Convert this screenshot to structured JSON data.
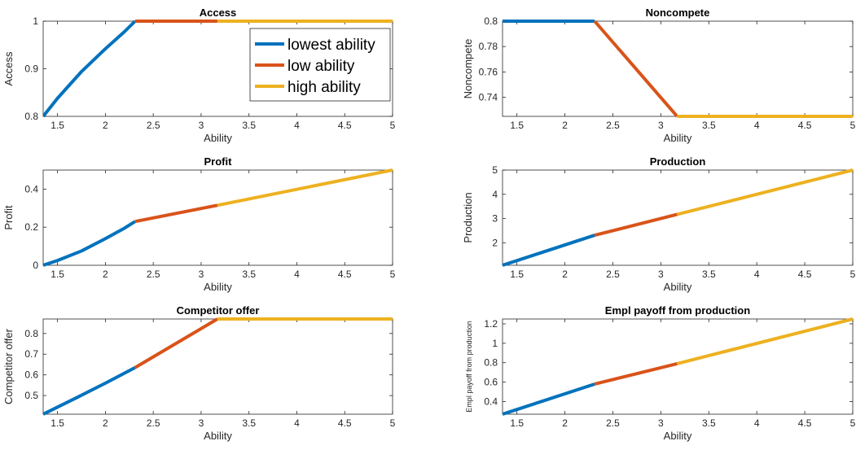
{
  "colors": {
    "lowest": "#0072BD",
    "low": "#D95319",
    "high": "#EDB120",
    "axis": "#262626",
    "background": "#ffffff"
  },
  "chart_data": [
    {
      "id": "access",
      "type": "line",
      "title": "Access",
      "xlabel": "Ability",
      "ylabel": "Access",
      "xlim": [
        1.35,
        5
      ],
      "ylim": [
        0.8,
        1
      ],
      "xticks": [
        1.5,
        2,
        2.5,
        3,
        3.5,
        4,
        4.5,
        5
      ],
      "xtick_labels": [
        "1.5",
        "2",
        "2.5",
        "3",
        "3.5",
        "4",
        "4.5",
        "5"
      ],
      "yticks": [
        0.8,
        0.9,
        1
      ],
      "ytick_labels": [
        "0.8",
        "0.9",
        "1"
      ],
      "grid": false,
      "legend": {
        "placement": "top-right",
        "entries": [
          "lowest ability",
          "low ability",
          "high ability"
        ]
      },
      "series": [
        {
          "name": "lowest ability",
          "color_key": "lowest",
          "x": [
            1.35,
            1.5,
            1.75,
            2.0,
            2.2,
            2.31
          ],
          "y": [
            0.8,
            0.838,
            0.894,
            0.942,
            0.978,
            1.0
          ]
        },
        {
          "name": "low ability",
          "color_key": "low",
          "x": [
            2.31,
            3.17
          ],
          "y": [
            1.0,
            1.0
          ]
        },
        {
          "name": "high ability",
          "color_key": "high",
          "x": [
            3.17,
            5.0
          ],
          "y": [
            1.0,
            1.0
          ]
        }
      ]
    },
    {
      "id": "noncompete",
      "type": "line",
      "title": "Noncompete",
      "xlabel": "Ability",
      "ylabel": "Noncompete",
      "xlim": [
        1.35,
        5
      ],
      "ylim": [
        0.725,
        0.8
      ],
      "xticks": [
        1.5,
        2,
        2.5,
        3,
        3.5,
        4,
        4.5,
        5
      ],
      "xtick_labels": [
        "1.5",
        "2",
        "2.5",
        "3",
        "3.5",
        "4",
        "4.5",
        "5"
      ],
      "yticks": [
        0.74,
        0.76,
        0.78,
        0.8
      ],
      "ytick_labels": [
        "0.74",
        "0.76",
        "0.78",
        "0.8"
      ],
      "grid": false,
      "series": [
        {
          "color_key": "lowest",
          "x": [
            1.35,
            2.31
          ],
          "y": [
            0.8,
            0.8
          ]
        },
        {
          "color_key": "low",
          "x": [
            2.31,
            3.17
          ],
          "y": [
            0.8,
            0.725
          ]
        },
        {
          "color_key": "high",
          "x": [
            3.17,
            5.0
          ],
          "y": [
            0.725,
            0.725
          ]
        }
      ]
    },
    {
      "id": "profit",
      "type": "line",
      "title": "Profit",
      "xlabel": "Ability",
      "ylabel": "Profit",
      "xlim": [
        1.35,
        5
      ],
      "ylim": [
        0,
        0.5
      ],
      "xticks": [
        1.5,
        2,
        2.5,
        3,
        3.5,
        4,
        4.5,
        5
      ],
      "xtick_labels": [
        "1.5",
        "2",
        "2.5",
        "3",
        "3.5",
        "4",
        "4.5",
        "5"
      ],
      "yticks": [
        0,
        0.2,
        0.4
      ],
      "ytick_labels": [
        "0",
        "0.2",
        "0.4"
      ],
      "grid": false,
      "series": [
        {
          "color_key": "lowest",
          "x": [
            1.35,
            1.5,
            1.75,
            2.0,
            2.2,
            2.31
          ],
          "y": [
            0.0,
            0.025,
            0.075,
            0.14,
            0.195,
            0.23
          ]
        },
        {
          "color_key": "low",
          "x": [
            2.31,
            3.17
          ],
          "y": [
            0.23,
            0.315
          ]
        },
        {
          "color_key": "high",
          "x": [
            3.17,
            5.0
          ],
          "y": [
            0.315,
            0.5
          ]
        }
      ]
    },
    {
      "id": "production",
      "type": "line",
      "title": "Production",
      "xlabel": "Ability",
      "ylabel": "Production",
      "xlim": [
        1.35,
        5
      ],
      "ylim": [
        1.07,
        5
      ],
      "xticks": [
        1.5,
        2,
        2.5,
        3,
        3.5,
        4,
        4.5,
        5
      ],
      "xtick_labels": [
        "1.5",
        "2",
        "2.5",
        "3",
        "3.5",
        "4",
        "4.5",
        "5"
      ],
      "yticks": [
        2,
        3,
        4,
        5
      ],
      "ytick_labels": [
        "2",
        "3",
        "4",
        "5"
      ],
      "grid": false,
      "series": [
        {
          "color_key": "lowest",
          "x": [
            1.35,
            2.31
          ],
          "y": [
            1.07,
            2.31
          ]
        },
        {
          "color_key": "low",
          "x": [
            2.31,
            3.17
          ],
          "y": [
            2.31,
            3.17
          ]
        },
        {
          "color_key": "high",
          "x": [
            3.17,
            5.0
          ],
          "y": [
            3.17,
            5.0
          ]
        }
      ]
    },
    {
      "id": "competitor",
      "type": "line",
      "title": "Competitor offer",
      "xlabel": "Ability",
      "ylabel": "Competitor offer",
      "xlim": [
        1.35,
        5
      ],
      "ylim": [
        0.41,
        0.87
      ],
      "xticks": [
        1.5,
        2,
        2.5,
        3,
        3.5,
        4,
        4.5,
        5
      ],
      "xtick_labels": [
        "1.5",
        "2",
        "2.5",
        "3",
        "3.5",
        "4",
        "4.5",
        "5"
      ],
      "yticks": [
        0.5,
        0.6,
        0.7,
        0.8
      ],
      "ytick_labels": [
        "0.5",
        "0.6",
        "0.7",
        "0.8"
      ],
      "grid": false,
      "series": [
        {
          "color_key": "lowest",
          "x": [
            1.35,
            1.7,
            2.0,
            2.31
          ],
          "y": [
            0.41,
            0.49,
            0.56,
            0.635
          ]
        },
        {
          "color_key": "low",
          "x": [
            2.31,
            3.17
          ],
          "y": [
            0.635,
            0.87
          ]
        },
        {
          "color_key": "high",
          "x": [
            3.17,
            5.0
          ],
          "y": [
            0.87,
            0.87
          ]
        }
      ]
    },
    {
      "id": "empl",
      "type": "line",
      "title": "Empl payoff from production",
      "xlabel": "Ability",
      "ylabel": "Empl payoff from production",
      "xlim": [
        1.35,
        5
      ],
      "ylim": [
        0.27,
        1.25
      ],
      "xticks": [
        1.5,
        2,
        2.5,
        3,
        3.5,
        4,
        4.5,
        5
      ],
      "xtick_labels": [
        "1.5",
        "2",
        "2.5",
        "3",
        "3.5",
        "4",
        "4.5",
        "5"
      ],
      "yticks": [
        0.4,
        0.6,
        0.8,
        1,
        1.2
      ],
      "ytick_labels": [
        "0.4",
        "0.6",
        "0.8",
        "1",
        "1.2"
      ],
      "grid": false,
      "series": [
        {
          "color_key": "lowest",
          "x": [
            1.35,
            2.31
          ],
          "y": [
            0.27,
            0.58
          ]
        },
        {
          "color_key": "low",
          "x": [
            2.31,
            3.17
          ],
          "y": [
            0.58,
            0.79
          ]
        },
        {
          "color_key": "high",
          "x": [
            3.17,
            5.0
          ],
          "y": [
            0.79,
            1.25
          ]
        }
      ]
    }
  ]
}
